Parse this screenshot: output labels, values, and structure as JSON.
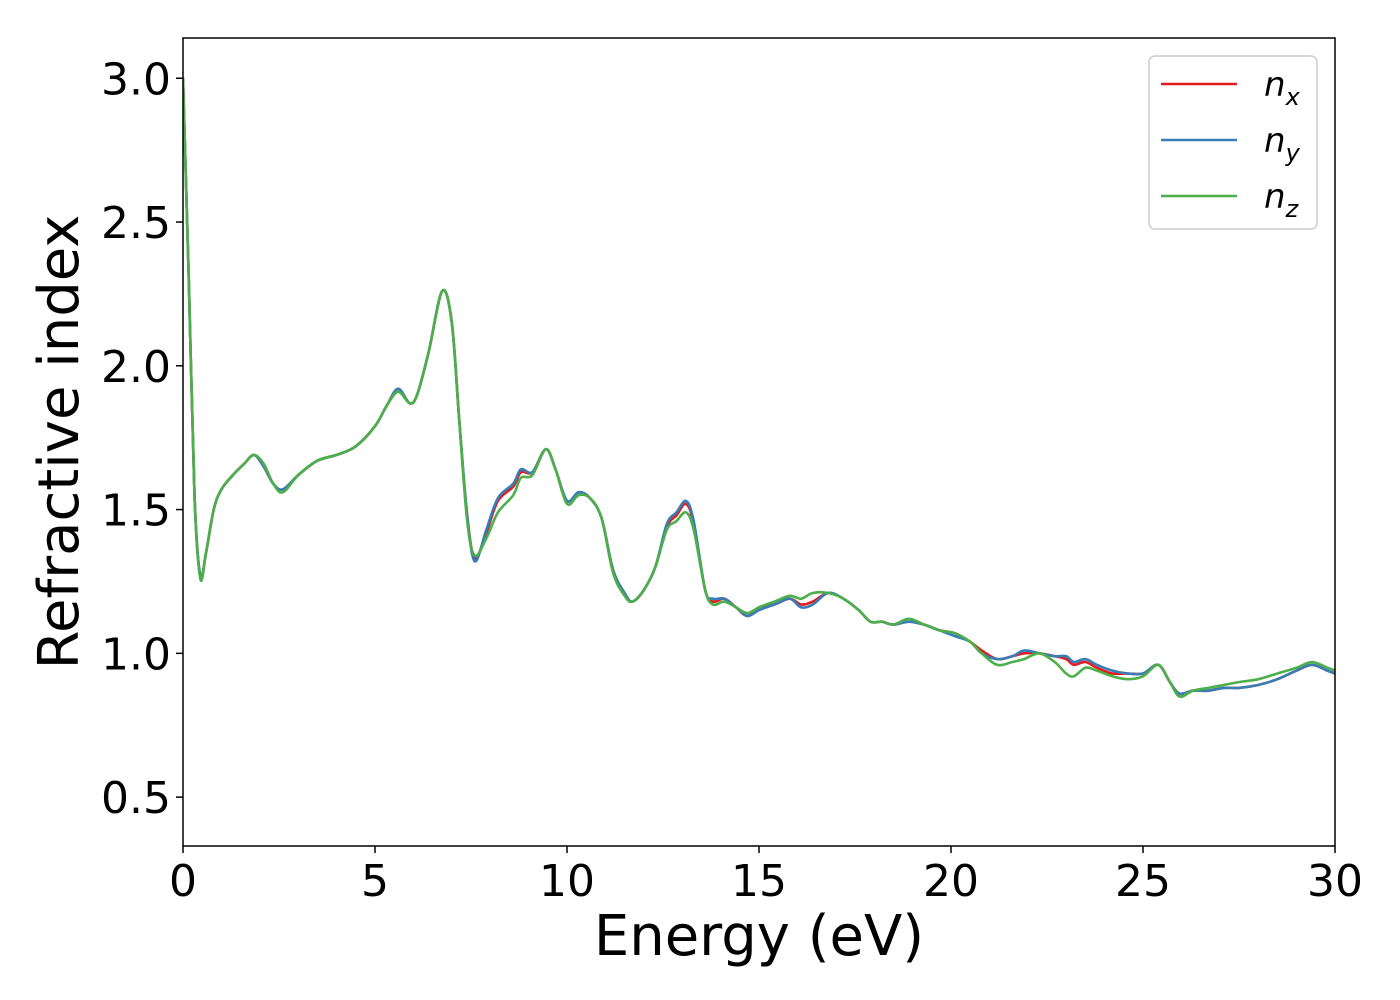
{
  "chart_data": {
    "type": "line",
    "xlabel": "Energy (eV)",
    "ylabel": "Refractive index",
    "xlim": [
      0,
      30
    ],
    "ylim": [
      0.33,
      3.14
    ],
    "xticks": [
      0,
      5,
      10,
      15,
      20,
      25,
      30
    ],
    "xtick_labels": [
      "0",
      "5",
      "10",
      "15",
      "20",
      "25",
      "30"
    ],
    "yticks": [
      0.5,
      1.0,
      1.5,
      2.0,
      2.5,
      3.0
    ],
    "ytick_labels": [
      "0.5",
      "1.0",
      "1.5",
      "2.0",
      "2.5",
      "3.0"
    ],
    "grid": false,
    "legend_position": "top-right",
    "series": [
      {
        "name": "n",
        "subscript": "x",
        "color": "#e41a1c",
        "points": [
          [
            0,
            3.0
          ],
          [
            0.15,
            2.3
          ],
          [
            0.3,
            1.55
          ],
          [
            0.45,
            1.27
          ],
          [
            0.6,
            1.35
          ],
          [
            0.8,
            1.5
          ],
          [
            1.0,
            1.57
          ],
          [
            1.3,
            1.62
          ],
          [
            1.6,
            1.66
          ],
          [
            1.85,
            1.69
          ],
          [
            2.1,
            1.65
          ],
          [
            2.35,
            1.59
          ],
          [
            2.6,
            1.57
          ],
          [
            3.0,
            1.62
          ],
          [
            3.5,
            1.67
          ],
          [
            4.0,
            1.69
          ],
          [
            4.5,
            1.72
          ],
          [
            5.0,
            1.79
          ],
          [
            5.3,
            1.86
          ],
          [
            5.6,
            1.92
          ],
          [
            5.9,
            1.87
          ],
          [
            6.1,
            1.9
          ],
          [
            6.4,
            2.05
          ],
          [
            6.75,
            2.26
          ],
          [
            7.0,
            2.15
          ],
          [
            7.2,
            1.8
          ],
          [
            7.4,
            1.48
          ],
          [
            7.6,
            1.33
          ],
          [
            7.9,
            1.42
          ],
          [
            8.2,
            1.53
          ],
          [
            8.6,
            1.58
          ],
          [
            8.8,
            1.63
          ],
          [
            9.1,
            1.63
          ],
          [
            9.45,
            1.71
          ],
          [
            9.7,
            1.64
          ],
          [
            10.0,
            1.53
          ],
          [
            10.3,
            1.56
          ],
          [
            10.6,
            1.54
          ],
          [
            10.9,
            1.47
          ],
          [
            11.2,
            1.29
          ],
          [
            11.5,
            1.21
          ],
          [
            11.7,
            1.18
          ],
          [
            12.0,
            1.22
          ],
          [
            12.3,
            1.3
          ],
          [
            12.6,
            1.44
          ],
          [
            12.85,
            1.48
          ],
          [
            13.1,
            1.52
          ],
          [
            13.3,
            1.45
          ],
          [
            13.6,
            1.22
          ],
          [
            13.8,
            1.18
          ],
          [
            14.1,
            1.19
          ],
          [
            14.4,
            1.16
          ],
          [
            14.7,
            1.13
          ],
          [
            15.0,
            1.16
          ],
          [
            15.4,
            1.17
          ],
          [
            15.8,
            1.19
          ],
          [
            16.1,
            1.17
          ],
          [
            16.4,
            1.18
          ],
          [
            16.8,
            1.21
          ],
          [
            17.2,
            1.19
          ],
          [
            17.6,
            1.15
          ],
          [
            17.9,
            1.11
          ],
          [
            18.2,
            1.11
          ],
          [
            18.5,
            1.1
          ],
          [
            18.9,
            1.11
          ],
          [
            19.3,
            1.1
          ],
          [
            19.7,
            1.08
          ],
          [
            20.1,
            1.07
          ],
          [
            20.5,
            1.04
          ],
          [
            20.8,
            1.01
          ],
          [
            21.2,
            0.98
          ],
          [
            21.6,
            0.99
          ],
          [
            21.9,
            1.0
          ],
          [
            22.3,
            1.0
          ],
          [
            22.7,
            0.99
          ],
          [
            23.0,
            0.98
          ],
          [
            23.2,
            0.96
          ],
          [
            23.5,
            0.97
          ],
          [
            23.8,
            0.95
          ],
          [
            24.2,
            0.93
          ],
          [
            24.6,
            0.93
          ],
          [
            25.0,
            0.93
          ],
          [
            25.4,
            0.96
          ],
          [
            25.7,
            0.9
          ],
          [
            25.95,
            0.86
          ],
          [
            26.3,
            0.87
          ],
          [
            26.7,
            0.87
          ],
          [
            27.1,
            0.88
          ],
          [
            27.5,
            0.88
          ],
          [
            28.0,
            0.89
          ],
          [
            28.5,
            0.91
          ],
          [
            29.0,
            0.94
          ],
          [
            29.4,
            0.96
          ],
          [
            29.8,
            0.94
          ],
          [
            30.0,
            0.93
          ]
        ]
      },
      {
        "name": "n",
        "subscript": "y",
        "color": "#377eb8",
        "points": [
          [
            0,
            3.0
          ],
          [
            0.15,
            2.3
          ],
          [
            0.3,
            1.55
          ],
          [
            0.45,
            1.27
          ],
          [
            0.6,
            1.35
          ],
          [
            0.8,
            1.5
          ],
          [
            1.0,
            1.57
          ],
          [
            1.3,
            1.62
          ],
          [
            1.6,
            1.66
          ],
          [
            1.85,
            1.69
          ],
          [
            2.1,
            1.65
          ],
          [
            2.35,
            1.59
          ],
          [
            2.6,
            1.57
          ],
          [
            3.0,
            1.62
          ],
          [
            3.5,
            1.67
          ],
          [
            4.0,
            1.69
          ],
          [
            4.5,
            1.72
          ],
          [
            5.0,
            1.79
          ],
          [
            5.3,
            1.86
          ],
          [
            5.6,
            1.92
          ],
          [
            5.9,
            1.87
          ],
          [
            6.1,
            1.9
          ],
          [
            6.4,
            2.05
          ],
          [
            6.75,
            2.26
          ],
          [
            7.0,
            2.15
          ],
          [
            7.2,
            1.8
          ],
          [
            7.4,
            1.48
          ],
          [
            7.6,
            1.32
          ],
          [
            7.9,
            1.43
          ],
          [
            8.2,
            1.54
          ],
          [
            8.6,
            1.59
          ],
          [
            8.8,
            1.64
          ],
          [
            9.1,
            1.63
          ],
          [
            9.45,
            1.71
          ],
          [
            9.7,
            1.64
          ],
          [
            10.0,
            1.53
          ],
          [
            10.3,
            1.56
          ],
          [
            10.6,
            1.54
          ],
          [
            10.9,
            1.47
          ],
          [
            11.2,
            1.29
          ],
          [
            11.5,
            1.21
          ],
          [
            11.7,
            1.18
          ],
          [
            12.0,
            1.22
          ],
          [
            12.3,
            1.3
          ],
          [
            12.6,
            1.45
          ],
          [
            12.85,
            1.49
          ],
          [
            13.1,
            1.53
          ],
          [
            13.3,
            1.46
          ],
          [
            13.6,
            1.22
          ],
          [
            13.8,
            1.19
          ],
          [
            14.1,
            1.19
          ],
          [
            14.4,
            1.16
          ],
          [
            14.7,
            1.13
          ],
          [
            15.0,
            1.15
          ],
          [
            15.4,
            1.17
          ],
          [
            15.8,
            1.19
          ],
          [
            16.1,
            1.16
          ],
          [
            16.4,
            1.17
          ],
          [
            16.8,
            1.21
          ],
          [
            17.2,
            1.19
          ],
          [
            17.6,
            1.15
          ],
          [
            17.9,
            1.11
          ],
          [
            18.2,
            1.11
          ],
          [
            18.5,
            1.1
          ],
          [
            18.9,
            1.11
          ],
          [
            19.3,
            1.1
          ],
          [
            19.7,
            1.08
          ],
          [
            20.1,
            1.06
          ],
          [
            20.5,
            1.04
          ],
          [
            20.8,
            1.0
          ],
          [
            21.2,
            0.98
          ],
          [
            21.6,
            0.99
          ],
          [
            21.9,
            1.01
          ],
          [
            22.3,
            1.0
          ],
          [
            22.7,
            0.99
          ],
          [
            23.0,
            0.99
          ],
          [
            23.2,
            0.97
          ],
          [
            23.5,
            0.98
          ],
          [
            23.8,
            0.96
          ],
          [
            24.2,
            0.94
          ],
          [
            24.6,
            0.93
          ],
          [
            25.0,
            0.93
          ],
          [
            25.4,
            0.96
          ],
          [
            25.7,
            0.9
          ],
          [
            25.95,
            0.86
          ],
          [
            26.3,
            0.87
          ],
          [
            26.7,
            0.87
          ],
          [
            27.1,
            0.88
          ],
          [
            27.5,
            0.88
          ],
          [
            28.0,
            0.89
          ],
          [
            28.5,
            0.91
          ],
          [
            29.0,
            0.94
          ],
          [
            29.4,
            0.96
          ],
          [
            29.8,
            0.94
          ],
          [
            30.0,
            0.93
          ]
        ]
      },
      {
        "name": "n",
        "subscript": "z",
        "color": "#4daf4a",
        "points": [
          [
            0,
            3.0
          ],
          [
            0.15,
            2.3
          ],
          [
            0.3,
            1.55
          ],
          [
            0.45,
            1.26
          ],
          [
            0.6,
            1.35
          ],
          [
            0.8,
            1.5
          ],
          [
            1.0,
            1.57
          ],
          [
            1.3,
            1.62
          ],
          [
            1.6,
            1.66
          ],
          [
            1.85,
            1.69
          ],
          [
            2.1,
            1.66
          ],
          [
            2.35,
            1.59
          ],
          [
            2.6,
            1.56
          ],
          [
            3.0,
            1.62
          ],
          [
            3.5,
            1.67
          ],
          [
            4.0,
            1.69
          ],
          [
            4.5,
            1.72
          ],
          [
            5.0,
            1.79
          ],
          [
            5.3,
            1.86
          ],
          [
            5.6,
            1.91
          ],
          [
            5.9,
            1.87
          ],
          [
            6.1,
            1.9
          ],
          [
            6.4,
            2.05
          ],
          [
            6.75,
            2.26
          ],
          [
            7.0,
            2.15
          ],
          [
            7.2,
            1.8
          ],
          [
            7.4,
            1.46
          ],
          [
            7.6,
            1.34
          ],
          [
            7.9,
            1.4
          ],
          [
            8.2,
            1.49
          ],
          [
            8.6,
            1.55
          ],
          [
            8.8,
            1.61
          ],
          [
            9.1,
            1.62
          ],
          [
            9.45,
            1.71
          ],
          [
            9.7,
            1.64
          ],
          [
            10.0,
            1.52
          ],
          [
            10.3,
            1.55
          ],
          [
            10.6,
            1.54
          ],
          [
            10.9,
            1.47
          ],
          [
            11.2,
            1.28
          ],
          [
            11.5,
            1.2
          ],
          [
            11.7,
            1.18
          ],
          [
            12.0,
            1.22
          ],
          [
            12.3,
            1.3
          ],
          [
            12.6,
            1.43
          ],
          [
            12.85,
            1.46
          ],
          [
            13.1,
            1.49
          ],
          [
            13.3,
            1.43
          ],
          [
            13.6,
            1.22
          ],
          [
            13.8,
            1.17
          ],
          [
            14.1,
            1.18
          ],
          [
            14.4,
            1.16
          ],
          [
            14.7,
            1.14
          ],
          [
            15.0,
            1.16
          ],
          [
            15.4,
            1.18
          ],
          [
            15.8,
            1.2
          ],
          [
            16.1,
            1.19
          ],
          [
            16.4,
            1.21
          ],
          [
            16.8,
            1.21
          ],
          [
            17.2,
            1.19
          ],
          [
            17.6,
            1.15
          ],
          [
            17.9,
            1.11
          ],
          [
            18.2,
            1.11
          ],
          [
            18.5,
            1.1
          ],
          [
            18.9,
            1.12
          ],
          [
            19.3,
            1.1
          ],
          [
            19.7,
            1.08
          ],
          [
            20.1,
            1.07
          ],
          [
            20.5,
            1.04
          ],
          [
            20.8,
            1.0
          ],
          [
            21.2,
            0.96
          ],
          [
            21.6,
            0.97
          ],
          [
            21.9,
            0.98
          ],
          [
            22.3,
            1.0
          ],
          [
            22.7,
            0.97
          ],
          [
            23.0,
            0.93
          ],
          [
            23.2,
            0.92
          ],
          [
            23.5,
            0.95
          ],
          [
            23.8,
            0.94
          ],
          [
            24.2,
            0.92
          ],
          [
            24.6,
            0.91
          ],
          [
            25.0,
            0.92
          ],
          [
            25.4,
            0.96
          ],
          [
            25.7,
            0.9
          ],
          [
            25.95,
            0.85
          ],
          [
            26.3,
            0.87
          ],
          [
            26.7,
            0.88
          ],
          [
            27.1,
            0.89
          ],
          [
            27.5,
            0.9
          ],
          [
            28.0,
            0.91
          ],
          [
            28.5,
            0.93
          ],
          [
            29.0,
            0.95
          ],
          [
            29.4,
            0.97
          ],
          [
            29.8,
            0.95
          ],
          [
            30.0,
            0.94
          ]
        ]
      }
    ]
  }
}
